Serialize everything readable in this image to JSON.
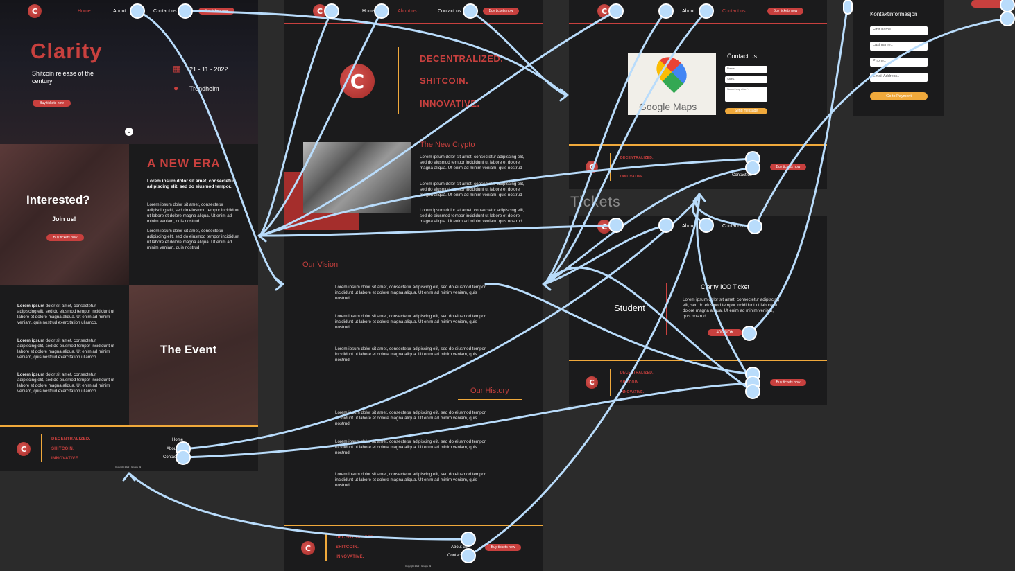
{
  "nav": {
    "home": "Home",
    "about": "About",
    "about_us": "About us",
    "contact": "Contact us",
    "buy": "Buy tickets now"
  },
  "footer": {
    "tag1": "DECENTRALIZED.",
    "tag2": "SHITCOIN.",
    "tag3": "INNOVATIVE.",
    "home": "Home",
    "about": "About us",
    "contact": "Contact us",
    "copyright": "Copyright 2022 - Gruppe 69"
  },
  "home": {
    "title": "Clarity",
    "subtitle": "Shitcoin release of the century",
    "buy": "Buy tickets now",
    "date": "21 - 11 - 2022",
    "location": "Trondheim",
    "interested": "Interested?",
    "join": "Join us!",
    "era_title": "A NEW ERA",
    "era_bold": "Lorem ipsum dolor sit amet, consectetur adipiscing elit, sed do eiusmod tempor.",
    "era_p": "Lorem ipsum dolor sit amet, consectetur adipiscing elit, sed do eiusmod tempor incididunt ut labore et dolore magna aliqua. Ut enim ad minim veniam, quis nostrud",
    "event_title": "The Event",
    "event_bold": "Lorem ipsum",
    "event_p": "dolor sit amet, consectetur adipiscing elit, sed do eiusmod tempor incididunt ut labore et dolore magna aliqua. Ut enim ad minim veniam, quis nostrud exercitation ullamco."
  },
  "about": {
    "tag1": "DECENTRALIZED.",
    "tag2": "SHITCOIN.",
    "tag3": "INNOVATIVE.",
    "crypto_title": "The New Crypto",
    "crypto_p": "Lorem ipsum dolor sit amet, consectetur adipiscing elit, sed do eiusmod tempor incididunt ut labore et dolore magna aliqua. Ut enim ad minim veniam, quis nostrud",
    "vision_title": "Our Vision",
    "vision_p": "Lorem ipsum dolor sit amet, consectetur adipiscing elit, sed do eiusmod tempor incididunt ut labore et dolore magna aliqua. Ut enim ad minim veniam, quis nostrud",
    "history_title": "Our History"
  },
  "contact": {
    "maps": "Google Maps",
    "title": "Contact us",
    "name": "Name..",
    "email": "Sales..",
    "message": "Something else?..",
    "send": "Send message"
  },
  "tickets": {
    "label": "Tickets",
    "student": "Student",
    "ticket_title": "Clarity ICO Ticket",
    "ticket_p": "Lorem ipsum dolor sit amet, consectetur adipiscing elit, sed do eiusmod tempor incididunt ut labore et dolore magna aliqua. Ut enim ad minim veniam, quis nostrud",
    "price": "400 NOK"
  },
  "form": {
    "title": "Kontaktinformasjon",
    "first": "First name..",
    "last": "Last name..",
    "phone": "Phone..",
    "email": "Email Address..",
    "pay": "Go to Payment"
  },
  "colors": {
    "accent_red": "#c8403e",
    "accent_orange": "#f0a93b",
    "wire": "#b9dcfb",
    "frame_bg": "#1b1b1c"
  }
}
